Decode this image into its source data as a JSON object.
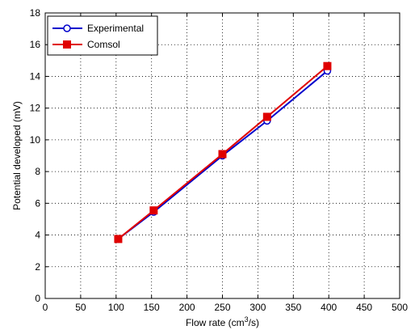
{
  "chart_data": {
    "type": "line",
    "xlabel_main": "Flow rate (cm",
    "xlabel_sup": "3",
    "xlabel_end": "/s)",
    "ylabel": "Potential developed (mV)",
    "xlim": [
      0,
      500
    ],
    "ylim": [
      0,
      18
    ],
    "x_ticks": [
      0,
      50,
      100,
      150,
      200,
      250,
      300,
      350,
      400,
      450,
      500
    ],
    "y_ticks": [
      0,
      2,
      4,
      6,
      8,
      10,
      12,
      14,
      16,
      18
    ],
    "grid": true,
    "legend_position": "top-left",
    "series": [
      {
        "name": "Experimental",
        "color": "#0000cc",
        "marker": "circle",
        "x": [
          103,
          153,
          250,
          313,
          398
        ],
        "y": [
          3.75,
          5.45,
          9.0,
          11.2,
          14.35
        ]
      },
      {
        "name": "Comsol",
        "color": "#e00000",
        "marker": "square",
        "x": [
          103,
          153,
          250,
          313,
          398
        ],
        "y": [
          3.75,
          5.55,
          9.1,
          11.45,
          14.65
        ]
      }
    ]
  }
}
